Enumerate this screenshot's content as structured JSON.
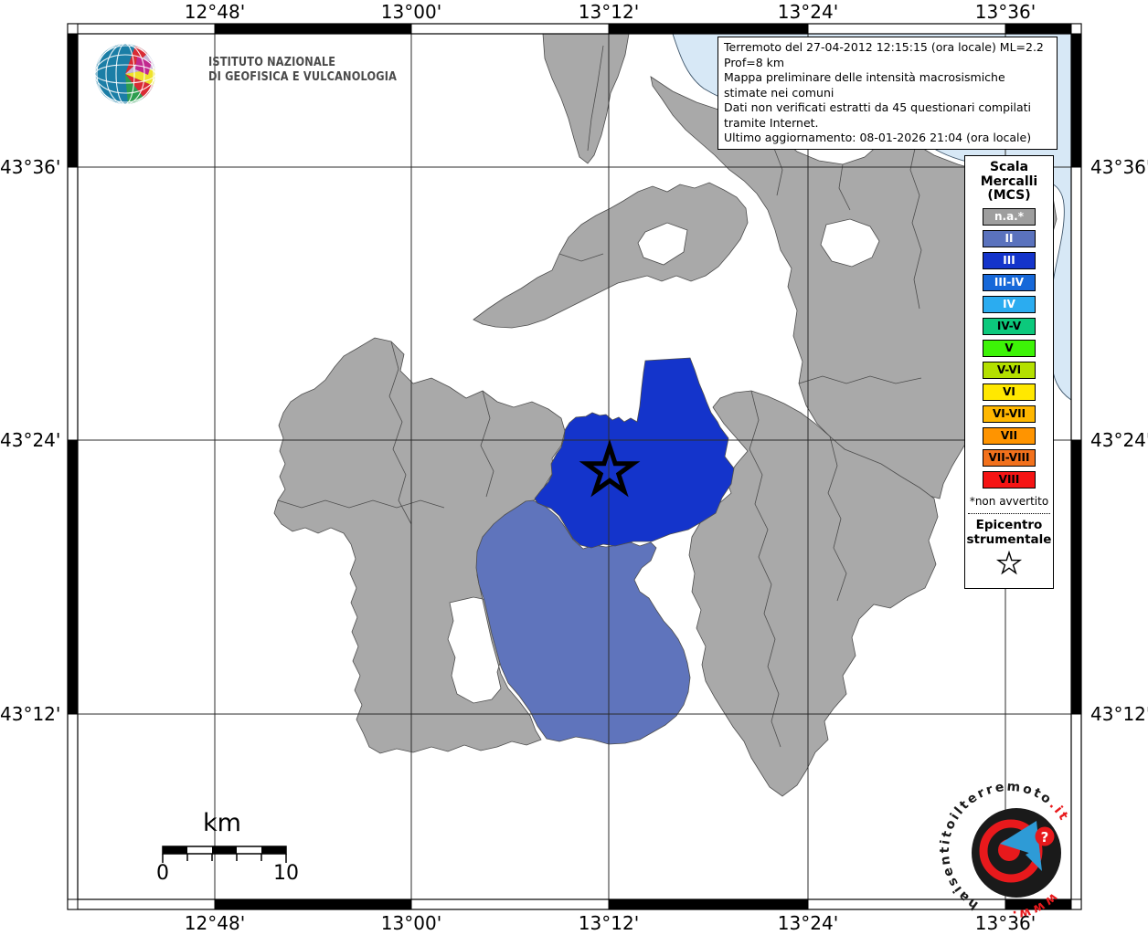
{
  "header": {
    "logo_line1": "ISTITUTO NAZIONALE",
    "logo_line2": "DI GEOFISICA E VULCANOLOGIA"
  },
  "title_box": {
    "line1": "Terremoto del 27-04-2012 12:15:15 (ora locale) ML=2.2 Prof=8 km",
    "line2": "Mappa preliminare delle intensità macrosismiche stimate nei comuni",
    "line3": "Dati non verificati estratti da 45 questionari compilati tramite Internet.",
    "line4": "Ultimo aggiornamento: 08-01-2026 21:04 (ora locale)"
  },
  "axes": {
    "lon_labels": [
      "12°48'",
      "13°00'",
      "13°12'",
      "13°24'",
      "13°36'"
    ],
    "lat_labels": [
      "43°36'",
      "43°24'",
      "43°12'"
    ]
  },
  "legend": {
    "title_line1": "Scala",
    "title_line2": "Mercalli",
    "title_line3": "(MCS)",
    "items": [
      {
        "label": "n.a.*",
        "color": "#9e9e9e",
        "text_color": "#ffffff"
      },
      {
        "label": "II",
        "color": "#5a72bd",
        "text_color": "#ffffff"
      },
      {
        "label": "III",
        "color": "#1434cb",
        "text_color": "#ffffff"
      },
      {
        "label": "III-IV",
        "color": "#1668d9",
        "text_color": "#ffffff"
      },
      {
        "label": "IV",
        "color": "#2bacf0",
        "text_color": "#ffffff"
      },
      {
        "label": "IV-V",
        "color": "#0cc97c",
        "text_color": "#000000"
      },
      {
        "label": "V",
        "color": "#3df307",
        "text_color": "#000000"
      },
      {
        "label": "V-VI",
        "color": "#b4e000",
        "text_color": "#000000"
      },
      {
        "label": "VI",
        "color": "#ffe800",
        "text_color": "#000000"
      },
      {
        "label": "VI-VII",
        "color": "#ffb700",
        "text_color": "#000000"
      },
      {
        "label": "VII",
        "color": "#ff9400",
        "text_color": "#000000"
      },
      {
        "label": "VII-VIII",
        "color": "#f2711c",
        "text_color": "#000000"
      },
      {
        "label": "VIII",
        "color": "#f51414",
        "text_color": "#000000"
      }
    ],
    "footnote": "*non avvertito",
    "epicenter_title_line1": "Epicentro",
    "epicenter_title_line2": "strumentale"
  },
  "scale_bar": {
    "unit": "km",
    "start_label": "0",
    "end_label": "10"
  },
  "watermark": {
    "url_prefix": "www.",
    "url_main": "haisentitoilterremoto",
    "url_suffix": ".it",
    "question_mark": "?"
  },
  "map_colors": {
    "sea": "#d7e8f6",
    "land_na": "#a9a9a9",
    "land_no_data": "#ffffff",
    "intensity_ii": "#5f74bc",
    "intensity_iii": "#1434cb",
    "boundary": "#4d4d4d"
  }
}
